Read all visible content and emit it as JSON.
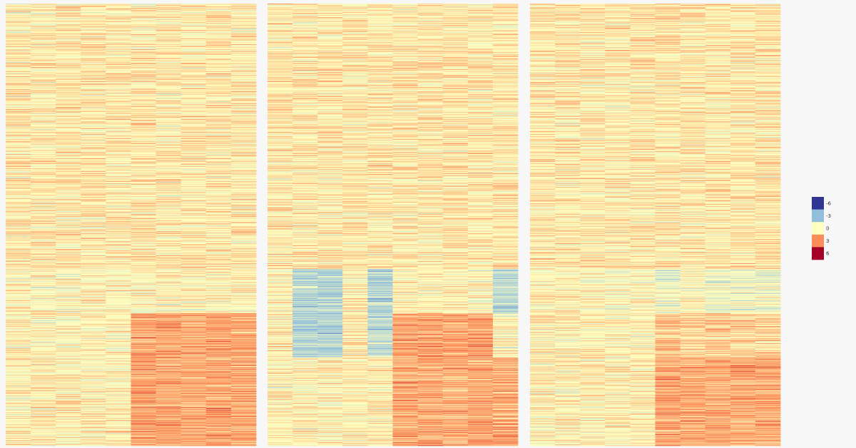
{
  "chart_data": {
    "type": "heatmap",
    "title": "",
    "xlabel": "",
    "ylabel": "",
    "panels": [
      {
        "columns": 10,
        "rows": 620,
        "row_blocks": [
          {
            "row_fraction": [
              0.0,
              0.6
            ],
            "column_means": [
              0.6,
              0.6,
              0.6,
              0.6,
              0.6,
              0.6,
              0.6,
              0.6,
              0.6,
              0.6
            ]
          },
          {
            "row_fraction": [
              0.6,
              0.7
            ],
            "column_means": [
              0.3,
              0.3,
              0.3,
              0.3,
              0.3,
              0.2,
              0.3,
              0.3,
              0.3,
              0.3
            ]
          },
          {
            "row_fraction": [
              0.7,
              0.8
            ],
            "column_means": [
              0.4,
              0.4,
              0.4,
              0.5,
              0.4,
              2.4,
              2.4,
              2.3,
              2.4,
              2.3
            ]
          },
          {
            "row_fraction": [
              0.8,
              1.0
            ],
            "column_means": [
              0.4,
              0.4,
              0.4,
              0.3,
              0.3,
              2.3,
              2.2,
              2.1,
              2.2,
              2.1
            ]
          }
        ]
      },
      {
        "columns": 10,
        "rows": 620,
        "row_blocks": [
          {
            "row_fraction": [
              0.0,
              0.6
            ],
            "column_means": [
              0.6,
              0.6,
              0.6,
              0.6,
              0.6,
              0.6,
              0.6,
              0.6,
              0.6,
              0.6
            ]
          },
          {
            "row_fraction": [
              0.6,
              0.7
            ],
            "column_means": [
              0.3,
              -1.8,
              -1.9,
              0.5,
              -2.0,
              0.3,
              0.3,
              0.3,
              0.3,
              -1.7
            ]
          },
          {
            "row_fraction": [
              0.7,
              0.8
            ],
            "column_means": [
              0.4,
              -2.1,
              -2.2,
              0.6,
              -1.8,
              2.4,
              2.4,
              2.3,
              2.4,
              0.3
            ]
          },
          {
            "row_fraction": [
              0.8,
              1.0
            ],
            "column_means": [
              0.4,
              0.4,
              0.4,
              0.4,
              0.4,
              2.3,
              2.2,
              2.1,
              2.2,
              2.2
            ]
          }
        ]
      },
      {
        "columns": 10,
        "rows": 620,
        "row_blocks": [
          {
            "row_fraction": [
              0.0,
              0.6
            ],
            "column_means": [
              0.6,
              0.6,
              0.6,
              0.6,
              0.6,
              0.6,
              0.6,
              0.6,
              0.6,
              0.6
            ]
          },
          {
            "row_fraction": [
              0.6,
              0.7
            ],
            "column_means": [
              0.2,
              0.2,
              0.2,
              0.0,
              0.2,
              -0.6,
              0.2,
              -0.4,
              -0.3,
              -0.4
            ]
          },
          {
            "row_fraction": [
              0.7,
              0.8
            ],
            "column_means": [
              0.3,
              0.3,
              0.3,
              0.3,
              0.3,
              1.4,
              1.2,
              1.3,
              1.3,
              1.1
            ]
          },
          {
            "row_fraction": [
              0.8,
              1.0
            ],
            "column_means": [
              0.4,
              0.4,
              0.4,
              0.4,
              0.4,
              2.3,
              2.2,
              2.1,
              2.2,
              2.1
            ]
          }
        ]
      }
    ],
    "color_scale": {
      "domain": [
        -6,
        6
      ],
      "stops": [
        {
          "value": -6,
          "color": "#313695"
        },
        {
          "value": -3,
          "color": "#91bfdb"
        },
        {
          "value": 0,
          "color": "#ffffbf"
        },
        {
          "value": 3,
          "color": "#fc8d59"
        },
        {
          "value": 6,
          "color": "#a50026"
        }
      ]
    },
    "legend": {
      "placement": "right",
      "ticks": [
        "-6",
        "-3",
        "0",
        "3",
        "6"
      ],
      "colors": [
        "#313695",
        "#91bfdb",
        "#ffffbf",
        "#fc8d59",
        "#a50026"
      ]
    }
  }
}
